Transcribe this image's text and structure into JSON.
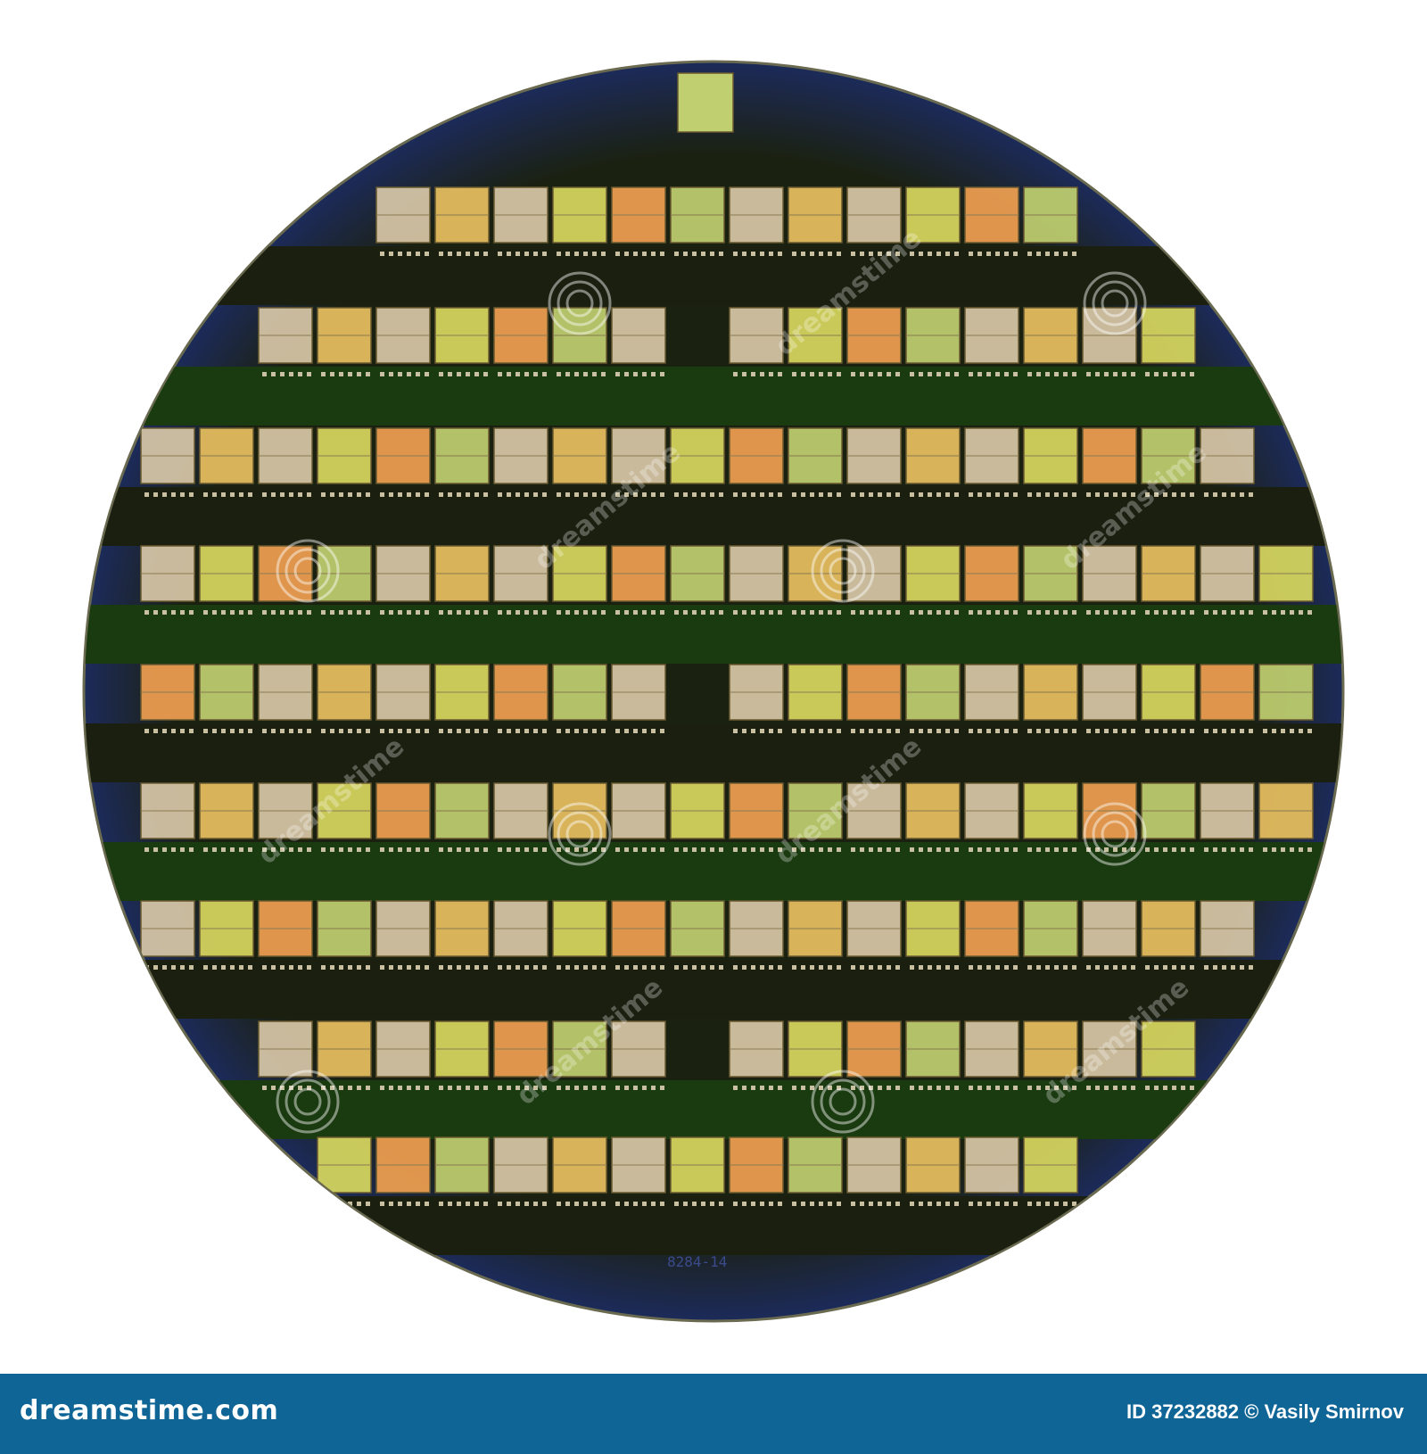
{
  "photo": {
    "subject": "silicon-wafer",
    "wafer_marking": "8284-14",
    "colors": {
      "background": "#ffffff",
      "wafer_dark": "#1a1f10",
      "wafer_rim": "#1c2a5a",
      "die_gold": "#e8c060",
      "die_yellow": "#d8d860",
      "die_beige": "#d8c8a8",
      "die_orange": "#f0a050",
      "die_green": "#c0d070",
      "street_green": "#1a3a10"
    }
  },
  "watermark": {
    "text": "dreamstime"
  },
  "footer": {
    "logo_text": "dreamstime.com",
    "credit_text": "ID 37232882 © Vasily Smirnov",
    "background": "#0f6596"
  }
}
